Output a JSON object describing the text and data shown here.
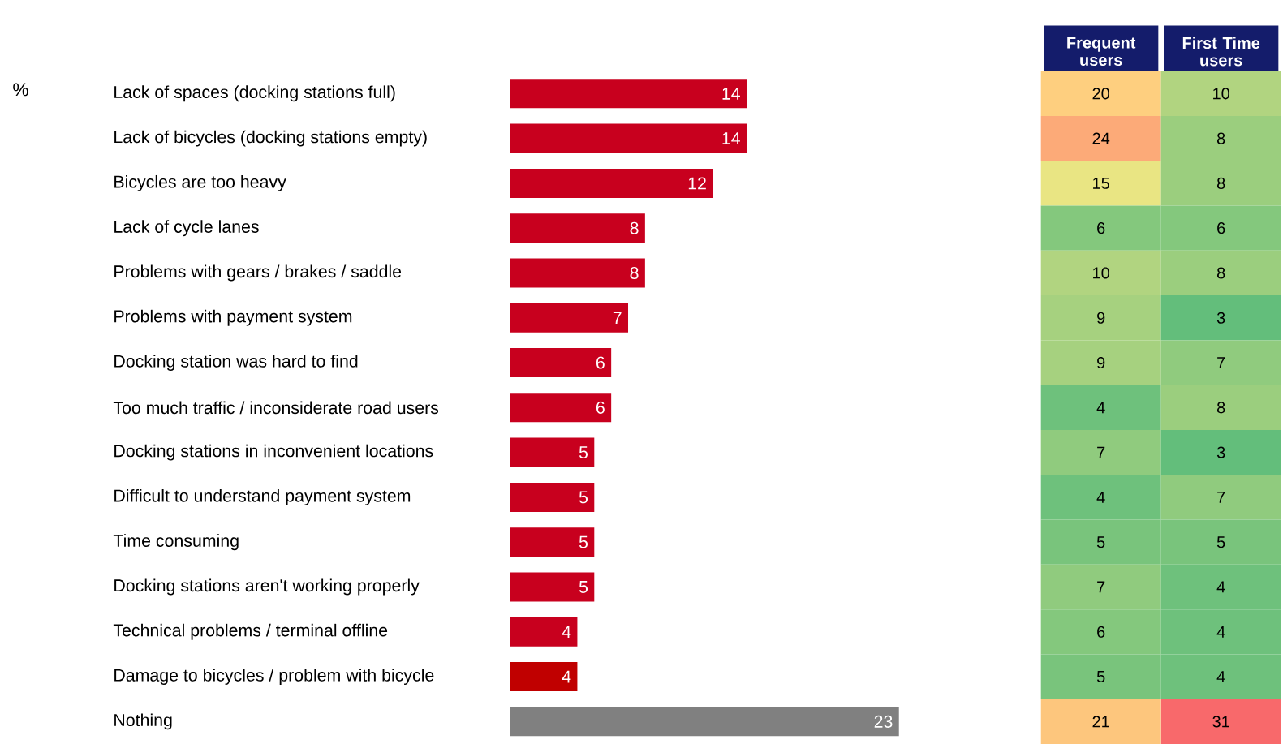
{
  "chart_data": [
    {
      "type": "bar",
      "orientation": "horizontal",
      "annotations": [
        "%"
      ],
      "data_labels": true,
      "categories": [
        "Lack of spaces (docking stations full)",
        "Lack of bicycles (docking stations empty)",
        "Bicycles are too heavy",
        "Lack of cycle lanes",
        "Problems with gears / brakes / saddle",
        "Problems with payment system",
        "Docking station was hard to find",
        "Too much traffic / inconsiderate road users",
        "Docking stations in inconvenient locations",
        "Difficult to understand payment system",
        "Time consuming",
        "Docking stations aren't working properly",
        "Technical problems / terminal offline",
        "Damage to bicycles / problem with bicycle",
        "Nothing"
      ],
      "values": [
        14,
        14,
        12,
        8,
        8,
        7,
        6,
        6,
        5,
        5,
        5,
        5,
        4,
        4,
        23
      ],
      "colors": [
        "#c8001e",
        "#c8001e",
        "#c8001e",
        "#c8001e",
        "#c8001e",
        "#c8001e",
        "#c8001e",
        "#c8001e",
        "#c8001e",
        "#c8001e",
        "#c8001e",
        "#c8001e",
        "#c8001e",
        "#c00000",
        "#808080"
      ]
    },
    {
      "type": "heatmap",
      "data_labels": true,
      "categories": [
        "Frequent users",
        "First Time users"
      ],
      "y_categories": [
        null,
        null,
        null,
        null,
        null,
        null,
        null,
        null,
        null,
        null,
        null,
        null,
        null,
        null,
        null
      ],
      "cells": [
        [
          20,
          10
        ],
        [
          24,
          8
        ],
        [
          15,
          8
        ],
        [
          6,
          6
        ],
        [
          10,
          8
        ],
        [
          9,
          3
        ],
        [
          9,
          7
        ],
        [
          4,
          8
        ],
        [
          7,
          3
        ],
        [
          4,
          7
        ],
        [
          5,
          5
        ],
        [
          7,
          4
        ],
        [
          6,
          4
        ],
        [
          5,
          4
        ],
        [
          21,
          31
        ]
      ]
    }
  ]
}
